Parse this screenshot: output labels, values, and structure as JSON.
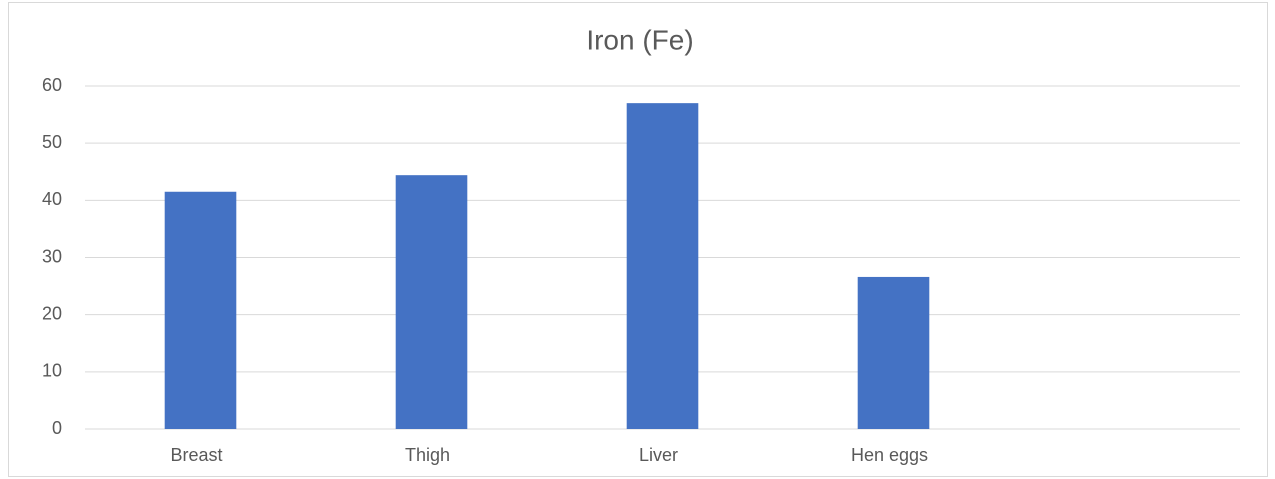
{
  "chart_data": {
    "type": "bar",
    "title": "Iron (Fe)",
    "categories": [
      "Breast",
      "Thigh",
      "Liver",
      "Hen eggs",
      null
    ],
    "values": [
      41.5,
      44.4,
      57.0,
      26.6,
      null
    ],
    "color": "#4472c4",
    "ylim": [
      0,
      60
    ],
    "yticks": [
      0,
      10,
      20,
      30,
      40,
      50,
      60
    ],
    "grid": true
  }
}
